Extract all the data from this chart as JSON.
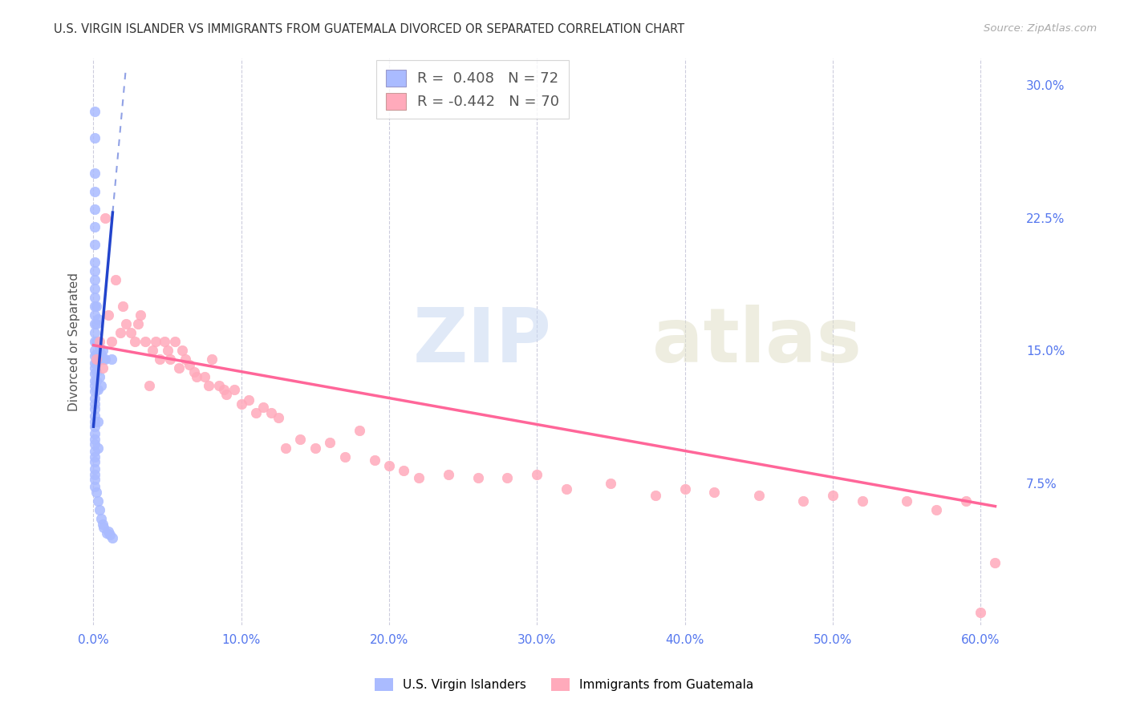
{
  "title": "U.S. VIRGIN ISLANDER VS IMMIGRANTS FROM GUATEMALA DIVORCED OR SEPARATED CORRELATION CHART",
  "source": "Source: ZipAtlas.com",
  "ylabel": "Divorced or Separated",
  "x_ticks": [
    0.0,
    0.1,
    0.2,
    0.3,
    0.4,
    0.5,
    0.6
  ],
  "x_tick_labels": [
    "0.0%",
    "10.0%",
    "20.0%",
    "30.0%",
    "40.0%",
    "50.0%",
    "60.0%"
  ],
  "y_ticks": [
    0.075,
    0.15,
    0.225,
    0.3
  ],
  "y_tick_labels": [
    "7.5%",
    "15.0%",
    "22.5%",
    "30.0%"
  ],
  "xlim": [
    -0.005,
    0.625
  ],
  "ylim": [
    -0.005,
    0.315
  ],
  "blue_color": "#aabbff",
  "pink_color": "#ffaabb",
  "blue_line_color": "#2244cc",
  "pink_line_color": "#ff6699",
  "blue_label": "U.S. Virgin Islanders",
  "pink_label": "Immigrants from Guatemala",
  "blue_R": "0.408",
  "blue_N": "72",
  "pink_R": "-0.442",
  "pink_N": "70",
  "blue_scatter_x": [
    0.001,
    0.001,
    0.001,
    0.001,
    0.001,
    0.001,
    0.001,
    0.001,
    0.001,
    0.001,
    0.001,
    0.001,
    0.001,
    0.001,
    0.001,
    0.001,
    0.001,
    0.001,
    0.001,
    0.001,
    0.001,
    0.001,
    0.001,
    0.001,
    0.001,
    0.001,
    0.001,
    0.001,
    0.001,
    0.001,
    0.001,
    0.001,
    0.001,
    0.001,
    0.001,
    0.001,
    0.001,
    0.001,
    0.001,
    0.001,
    0.001,
    0.002,
    0.002,
    0.002,
    0.002,
    0.002,
    0.002,
    0.002,
    0.002,
    0.002,
    0.003,
    0.003,
    0.003,
    0.003,
    0.003,
    0.003,
    0.004,
    0.004,
    0.004,
    0.005,
    0.005,
    0.005,
    0.006,
    0.006,
    0.007,
    0.007,
    0.008,
    0.009,
    0.01,
    0.011,
    0.012,
    0.013
  ],
  "blue_scatter_y": [
    0.285,
    0.27,
    0.25,
    0.24,
    0.23,
    0.22,
    0.21,
    0.2,
    0.195,
    0.19,
    0.185,
    0.18,
    0.175,
    0.17,
    0.165,
    0.16,
    0.155,
    0.15,
    0.147,
    0.143,
    0.14,
    0.137,
    0.133,
    0.13,
    0.127,
    0.123,
    0.12,
    0.117,
    0.113,
    0.11,
    0.107,
    0.103,
    0.1,
    0.097,
    0.093,
    0.09,
    0.087,
    0.083,
    0.08,
    0.077,
    0.073,
    0.175,
    0.165,
    0.155,
    0.148,
    0.143,
    0.138,
    0.133,
    0.128,
    0.07,
    0.168,
    0.148,
    0.128,
    0.11,
    0.095,
    0.065,
    0.152,
    0.135,
    0.06,
    0.148,
    0.13,
    0.055,
    0.15,
    0.052,
    0.145,
    0.05,
    0.145,
    0.047,
    0.048,
    0.046,
    0.145,
    0.044
  ],
  "pink_scatter_x": [
    0.002,
    0.004,
    0.006,
    0.008,
    0.01,
    0.012,
    0.015,
    0.018,
    0.02,
    0.022,
    0.025,
    0.028,
    0.03,
    0.032,
    0.035,
    0.038,
    0.04,
    0.042,
    0.045,
    0.048,
    0.05,
    0.052,
    0.055,
    0.058,
    0.06,
    0.062,
    0.065,
    0.068,
    0.07,
    0.075,
    0.078,
    0.08,
    0.085,
    0.088,
    0.09,
    0.095,
    0.1,
    0.105,
    0.11,
    0.115,
    0.12,
    0.125,
    0.13,
    0.14,
    0.15,
    0.16,
    0.17,
    0.18,
    0.19,
    0.2,
    0.21,
    0.22,
    0.24,
    0.26,
    0.28,
    0.3,
    0.32,
    0.35,
    0.38,
    0.4,
    0.42,
    0.45,
    0.48,
    0.5,
    0.52,
    0.55,
    0.57,
    0.59,
    0.6,
    0.61
  ],
  "pink_scatter_y": [
    0.145,
    0.155,
    0.14,
    0.225,
    0.17,
    0.155,
    0.19,
    0.16,
    0.175,
    0.165,
    0.16,
    0.155,
    0.165,
    0.17,
    0.155,
    0.13,
    0.15,
    0.155,
    0.145,
    0.155,
    0.15,
    0.145,
    0.155,
    0.14,
    0.15,
    0.145,
    0.142,
    0.138,
    0.135,
    0.135,
    0.13,
    0.145,
    0.13,
    0.128,
    0.125,
    0.128,
    0.12,
    0.122,
    0.115,
    0.118,
    0.115,
    0.112,
    0.095,
    0.1,
    0.095,
    0.098,
    0.09,
    0.105,
    0.088,
    0.085,
    0.082,
    0.078,
    0.08,
    0.078,
    0.078,
    0.08,
    0.072,
    0.075,
    0.068,
    0.072,
    0.07,
    0.068,
    0.065,
    0.068,
    0.065,
    0.065,
    0.06,
    0.065,
    0.002,
    0.03
  ],
  "blue_trend_x1": 0.0,
  "blue_trend_y1": 0.107,
  "blue_trend_x2": 0.013,
  "blue_trend_y2": 0.228,
  "blue_trend_ext_x1": 0.013,
  "blue_trend_ext_y1": 0.228,
  "blue_trend_ext_x2": 0.022,
  "blue_trend_ext_y2": 0.31,
  "pink_trend_x1": 0.0,
  "pink_trend_y1": 0.153,
  "pink_trend_x2": 0.61,
  "pink_trend_y2": 0.062
}
